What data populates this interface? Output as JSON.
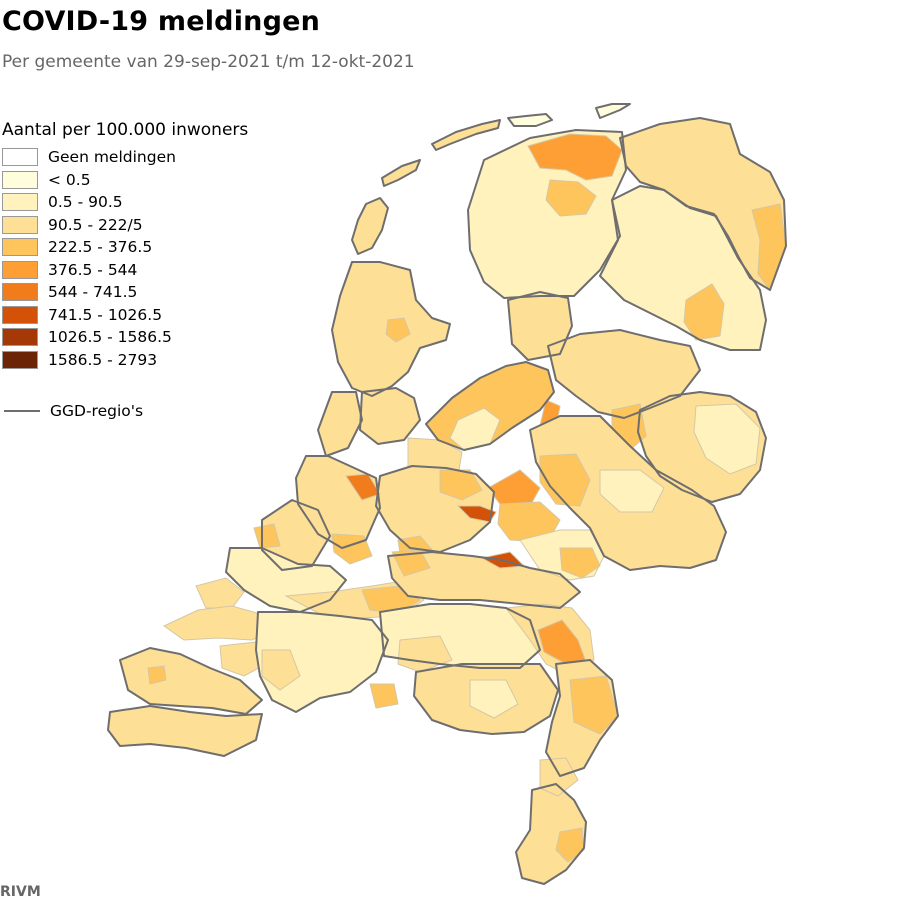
{
  "title": "COVID-19 meldingen",
  "subtitle": "Per gemeente van 29-sep-2021 t/m 12-okt-2021",
  "legend": {
    "title": "Aantal per 100.000 inwoners",
    "items": [
      {
        "label": "Geen meldingen",
        "color": "#ffffff"
      },
      {
        "label": "< 0.5",
        "color": "#fffddb"
      },
      {
        "label": "0.5 - 90.5",
        "color": "#fff2bd"
      },
      {
        "label": "90.5 - 222/5",
        "color": "#fedf96"
      },
      {
        "label": "222.5 - 376.5",
        "color": "#fec55c"
      },
      {
        "label": "376.5 - 544",
        "color": "#fd9f34"
      },
      {
        "label": "544 - 741.5",
        "color": "#f07c1c"
      },
      {
        "label": "741.5 - 1026.5",
        "color": "#d45208"
      },
      {
        "label": "1026.5 - 1586.5",
        "color": "#a53807"
      },
      {
        "label": "1586.5 - 2793",
        "color": "#6b2506"
      }
    ],
    "ggd_label": "GGD-regio's"
  },
  "source": "RIVM"
}
